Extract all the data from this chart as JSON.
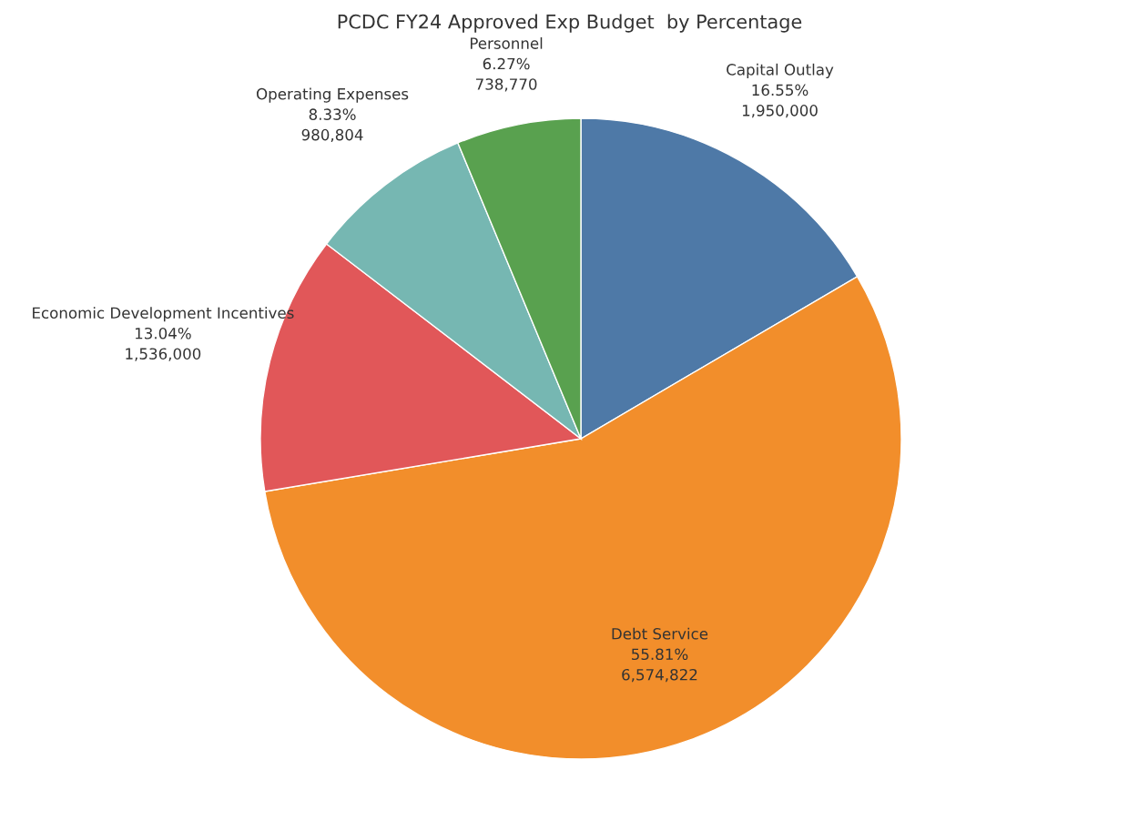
{
  "chart_data": {
    "type": "pie",
    "title": "PCDC FY24 Approved Exp Budget  by Percentage",
    "categories": [
      "Capital Outlay",
      "Debt Service",
      "Economic Development Incentives",
      "Operating Expenses",
      "Personnel"
    ],
    "values": [
      1950000,
      6574822,
      1536000,
      980804,
      738770
    ],
    "value_labels": [
      "16.55%\n1,950,000",
      "55.81%\n6,574,822",
      "13.04%\n1,536,000",
      "8.33%\n980,804",
      "6.27%\n738,770"
    ],
    "colors": [
      "#4e79a7",
      "#f28e2b",
      "#e15759",
      "#76b7b2",
      "#59a14f"
    ],
    "legend": false
  }
}
